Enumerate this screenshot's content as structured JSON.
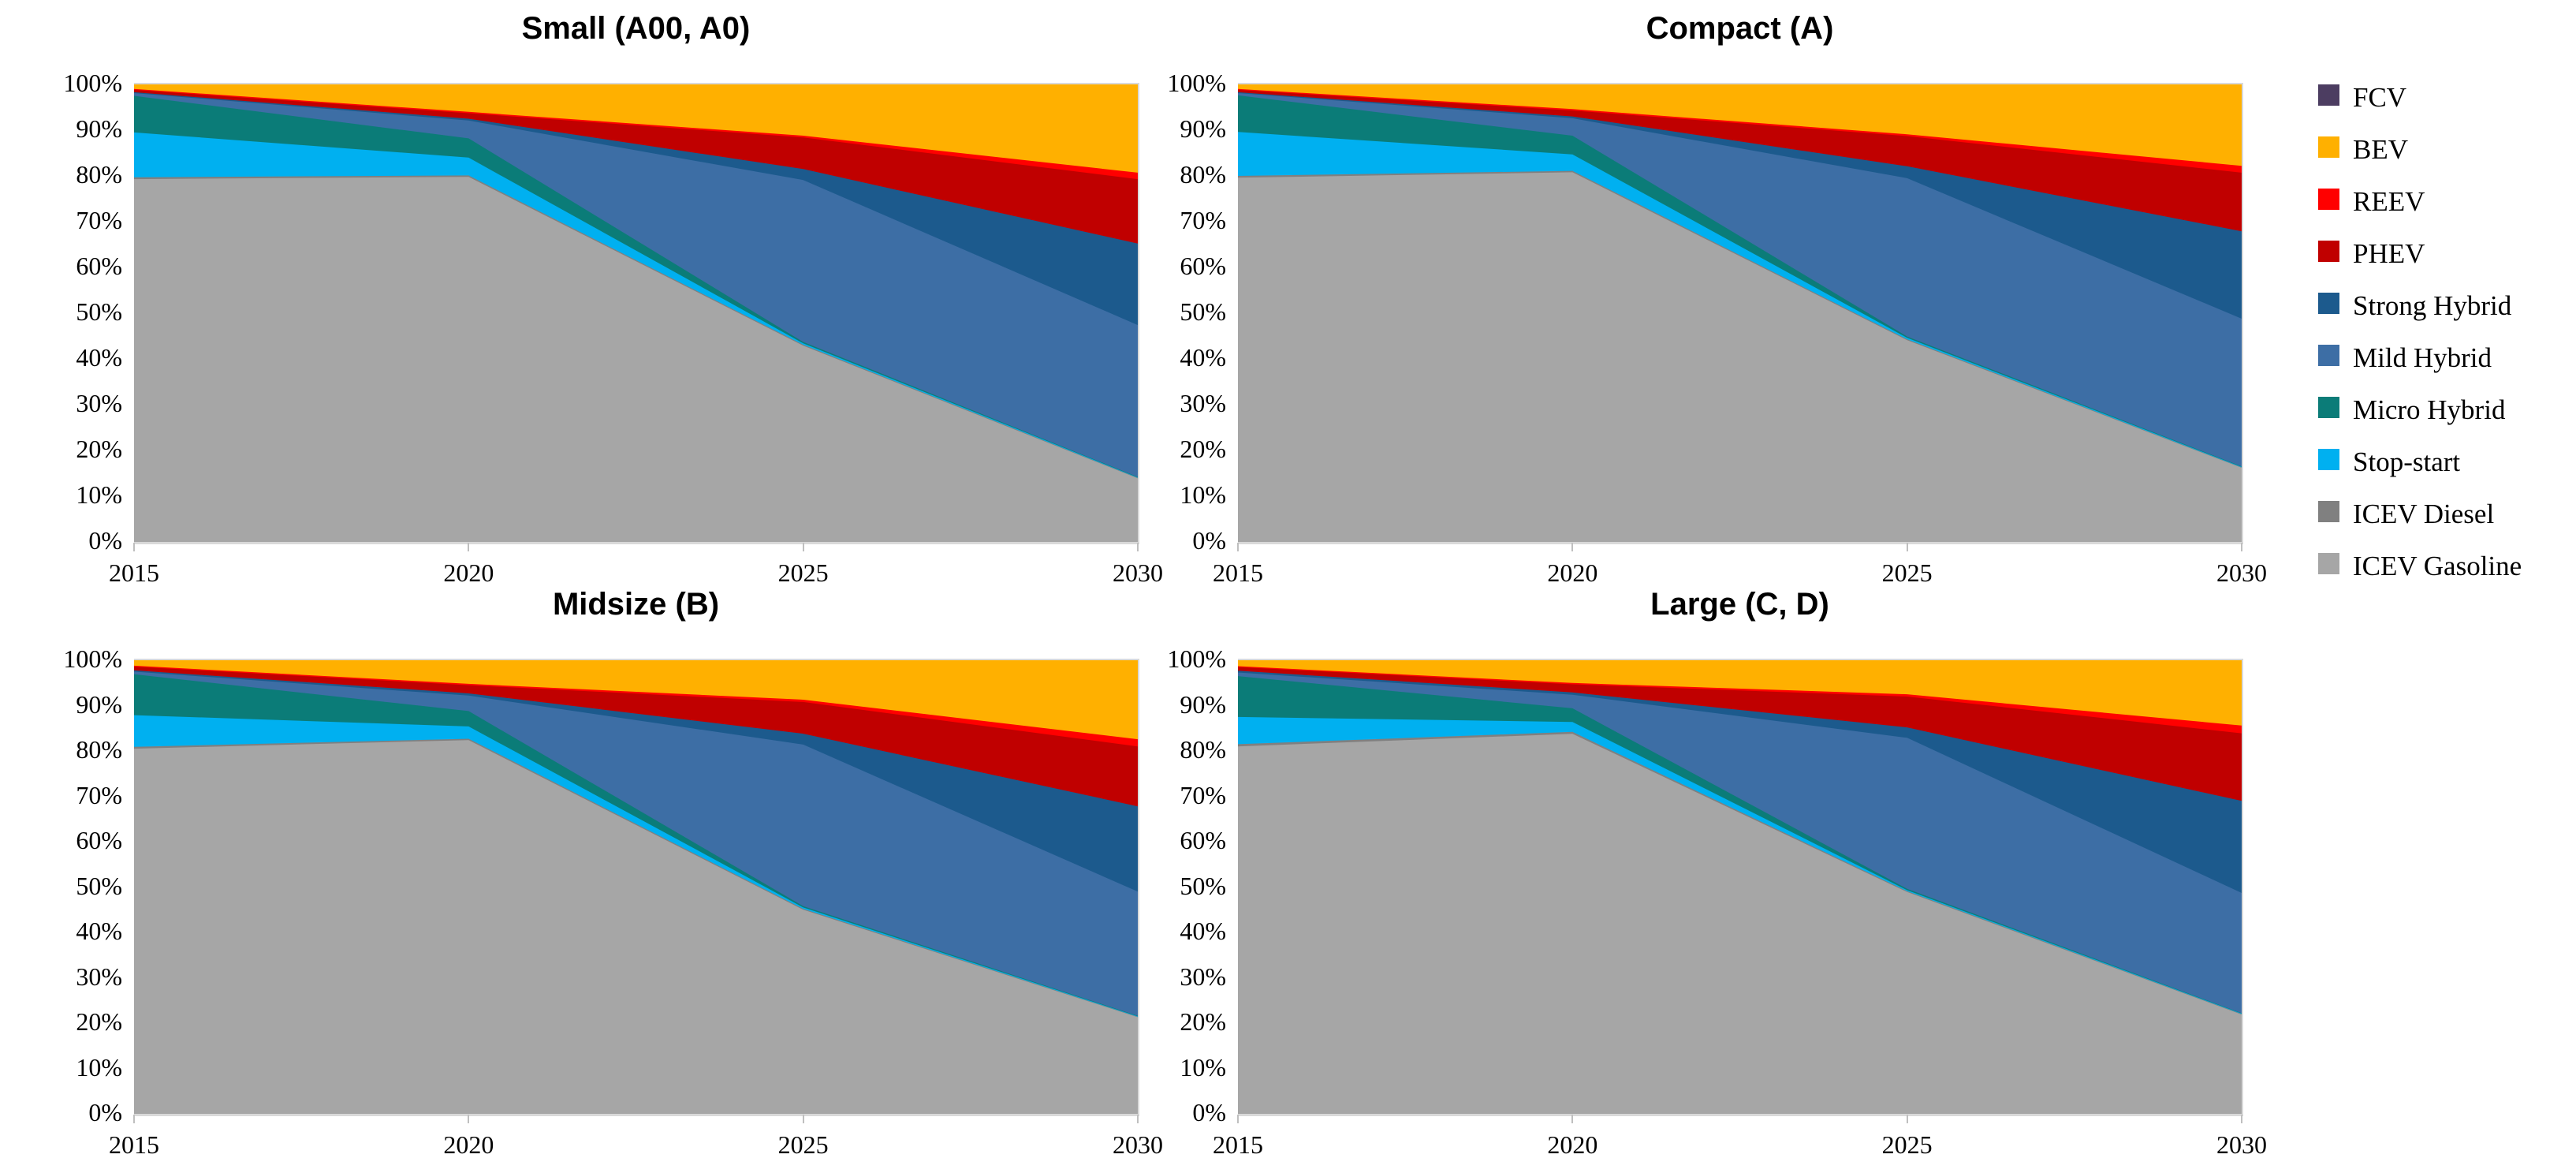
{
  "figure": {
    "background": "#ffffff",
    "plot_border_color": "#d9d9d9"
  },
  "legend": {
    "position": "right",
    "items": [
      {
        "label": "FCV",
        "color": "#4c3d61"
      },
      {
        "label": "BEV",
        "color": "#ffb000"
      },
      {
        "label": "REEV",
        "color": "#ff0000"
      },
      {
        "label": "PHEV",
        "color": "#c00000"
      },
      {
        "label": "Strong Hybrid",
        "color": "#1c5a8d"
      },
      {
        "label": "Mild Hybrid",
        "color": "#3d6ea5"
      },
      {
        "label": "Micro Hybrid",
        "color": "#0b7c78"
      },
      {
        "label": "Stop-start",
        "color": "#00b0f0"
      },
      {
        "label": "ICEV Diesel",
        "color": "#808080"
      },
      {
        "label": "ICEV Gasoline",
        "color": "#a6a6a6"
      }
    ]
  },
  "axis": {
    "y_ticks": [
      "100%",
      "90%",
      "80%",
      "70%",
      "60%",
      "50%",
      "40%",
      "30%",
      "20%",
      "10%",
      "0%"
    ],
    "x_ticks": [
      "2015",
      "2020",
      "2025",
      "2030"
    ],
    "ylim": [
      0,
      100
    ],
    "grid": false
  },
  "chart_data": [
    {
      "id": "small",
      "type": "area",
      "stacked_100": true,
      "title": "Small (A00, A0)",
      "x": [
        2015,
        2020,
        2025,
        2030
      ],
      "unit": "%",
      "series_bottom_to_top": [
        {
          "name": "ICEV Gasoline",
          "values": [
            79.3,
            79.8,
            42.9,
            13.9
          ]
        },
        {
          "name": "ICEV Diesel",
          "values": [
            0.4,
            0.3,
            0.2,
            0.1
          ]
        },
        {
          "name": "Stop-start",
          "values": [
            9.8,
            3.9,
            0.3,
            0.1
          ]
        },
        {
          "name": "Micro Hybrid",
          "values": [
            8.0,
            4.2,
            0.3,
            0.1
          ]
        },
        {
          "name": "Mild Hybrid",
          "values": [
            0.6,
            3.9,
            35.4,
            33.2
          ]
        },
        {
          "name": "Strong Hybrid",
          "values": [
            0.2,
            0.4,
            2.4,
            17.8
          ]
        },
        {
          "name": "PHEV",
          "values": [
            0.5,
            1.2,
            6.9,
            14.1
          ]
        },
        {
          "name": "REEV",
          "values": [
            0.2,
            0.3,
            0.4,
            1.4
          ]
        },
        {
          "name": "BEV",
          "values": [
            1.0,
            6.0,
            11.2,
            19.3
          ]
        },
        {
          "name": "FCV",
          "values": [
            0.0,
            0.0,
            0.0,
            0.0
          ]
        }
      ]
    },
    {
      "id": "compact",
      "type": "area",
      "stacked_100": true,
      "title": "Compact (A)",
      "x": [
        2015,
        2020,
        2025,
        2030
      ],
      "unit": "%",
      "series_bottom_to_top": [
        {
          "name": "ICEV Gasoline",
          "values": [
            79.6,
            80.8,
            44.1,
            16.2
          ]
        },
        {
          "name": "ICEV Diesel",
          "values": [
            0.4,
            0.3,
            0.2,
            0.1
          ]
        },
        {
          "name": "Stop-start",
          "values": [
            9.6,
            3.6,
            0.3,
            0.1
          ]
        },
        {
          "name": "Micro Hybrid",
          "values": [
            8.0,
            4.1,
            0.3,
            0.1
          ]
        },
        {
          "name": "Mild Hybrid",
          "values": [
            0.5,
            3.8,
            34.6,
            32.3
          ]
        },
        {
          "name": "Strong Hybrid",
          "values": [
            0.2,
            0.4,
            2.6,
            19.1
          ]
        },
        {
          "name": "PHEV",
          "values": [
            0.5,
            1.3,
            6.6,
            12.8
          ]
        },
        {
          "name": "REEV",
          "values": [
            0.2,
            0.3,
            0.4,
            1.5
          ]
        },
        {
          "name": "BEV",
          "values": [
            1.0,
            5.4,
            10.9,
            17.8
          ]
        },
        {
          "name": "FCV",
          "values": [
            0.0,
            0.0,
            0.0,
            0.0
          ]
        }
      ]
    },
    {
      "id": "midsize",
      "type": "area",
      "stacked_100": true,
      "title": "Midsize (B)",
      "x": [
        2015,
        2020,
        2025,
        2030
      ],
      "unit": "%",
      "series_bottom_to_top": [
        {
          "name": "ICEV Gasoline",
          "values": [
            80.5,
            82.4,
            45.0,
            21.3
          ]
        },
        {
          "name": "ICEV Diesel",
          "values": [
            0.4,
            0.3,
            0.2,
            0.1
          ]
        },
        {
          "name": "Stop-start",
          "values": [
            7.0,
            2.7,
            0.3,
            0.1
          ]
        },
        {
          "name": "Micro Hybrid",
          "values": [
            9.0,
            3.4,
            0.3,
            0.1
          ]
        },
        {
          "name": "Mild Hybrid",
          "values": [
            0.6,
            3.4,
            35.6,
            27.4
          ]
        },
        {
          "name": "Strong Hybrid",
          "values": [
            0.3,
            0.5,
            2.4,
            18.8
          ]
        },
        {
          "name": "PHEV",
          "values": [
            0.8,
            1.8,
            7.0,
            13.2
          ]
        },
        {
          "name": "REEV",
          "values": [
            0.2,
            0.3,
            0.5,
            1.6
          ]
        },
        {
          "name": "BEV",
          "values": [
            1.2,
            5.2,
            8.7,
            17.4
          ]
        },
        {
          "name": "FCV",
          "values": [
            0.0,
            0.0,
            0.0,
            0.0
          ]
        }
      ]
    },
    {
      "id": "large",
      "type": "area",
      "stacked_100": true,
      "title": "Large (C, D)",
      "x": [
        2015,
        2020,
        2025,
        2030
      ],
      "unit": "%",
      "series_bottom_to_top": [
        {
          "name": "ICEV Gasoline",
          "values": [
            81.0,
            83.8,
            48.9,
            21.9
          ]
        },
        {
          "name": "ICEV Diesel",
          "values": [
            0.5,
            0.4,
            0.2,
            0.1
          ]
        },
        {
          "name": "Stop-start",
          "values": [
            6.0,
            2.2,
            0.2,
            0.1
          ]
        },
        {
          "name": "Micro Hybrid",
          "values": [
            9.0,
            3.0,
            0.3,
            0.1
          ]
        },
        {
          "name": "Mild Hybrid",
          "values": [
            0.8,
            3.0,
            33.3,
            26.5
          ]
        },
        {
          "name": "Strong Hybrid",
          "values": [
            0.4,
            0.5,
            2.3,
            20.3
          ]
        },
        {
          "name": "PHEV",
          "values": [
            0.8,
            1.8,
            6.8,
            14.9
          ]
        },
        {
          "name": "REEV",
          "values": [
            0.2,
            0.3,
            0.5,
            1.7
          ]
        },
        {
          "name": "BEV",
          "values": [
            1.3,
            5.0,
            7.5,
            14.4
          ]
        },
        {
          "name": "FCV",
          "values": [
            0.0,
            0.0,
            0.0,
            0.0
          ]
        }
      ]
    }
  ]
}
